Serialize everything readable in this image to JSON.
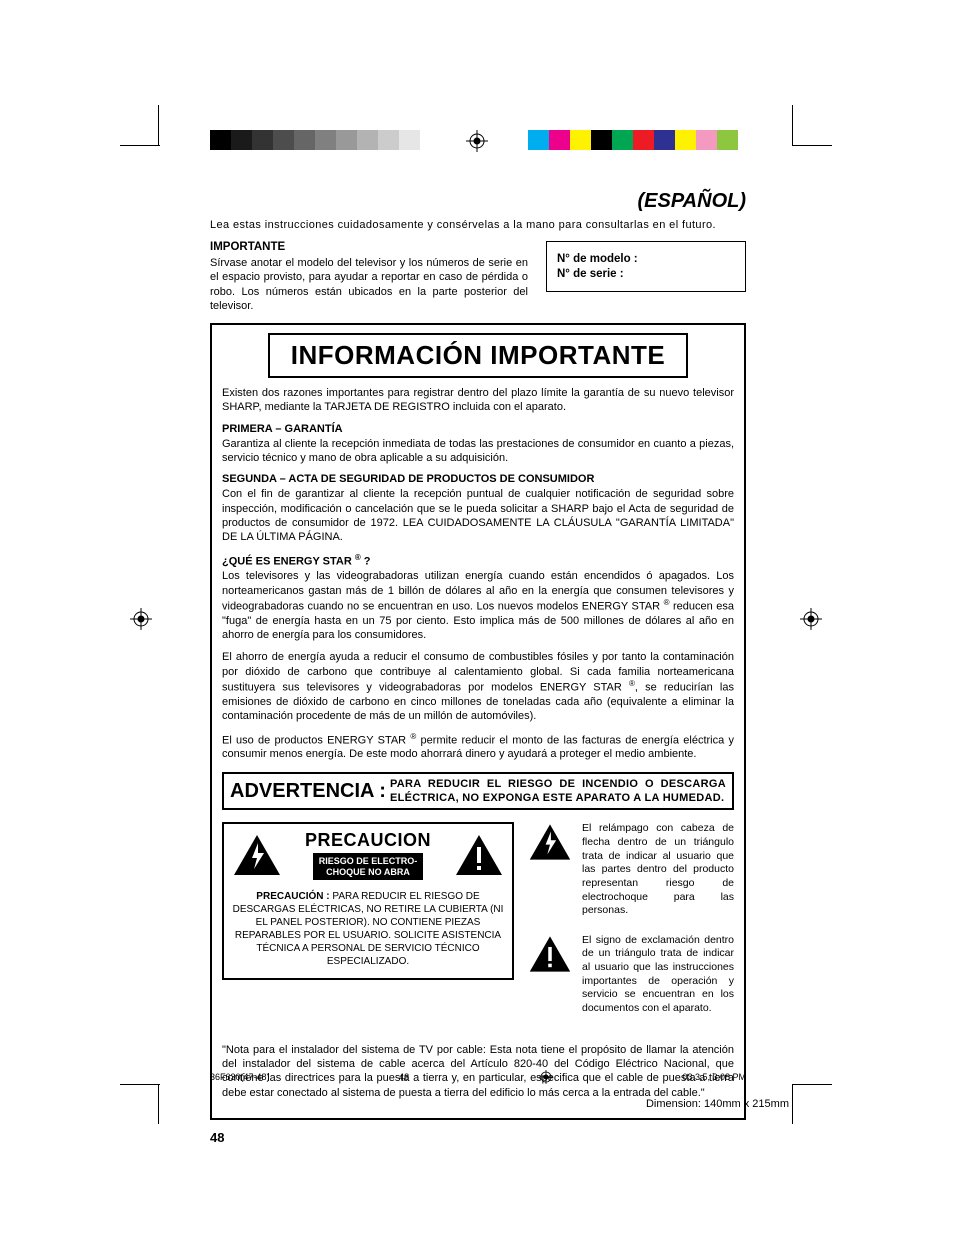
{
  "colors": {
    "text": "#000000",
    "background": "#ffffff",
    "gray_bar": [
      "#000000",
      "#1a1a1a",
      "#333333",
      "#4d4d4d",
      "#666666",
      "#808080",
      "#999999",
      "#b3b3b3",
      "#cccccc",
      "#e6e6e6"
    ],
    "cmyk_bar": [
      "#00aeef",
      "#ec008c",
      "#fff200",
      "#000000",
      "#00a651",
      "#ed1c24",
      "#2e3192",
      "#fff200",
      "#f49ac1",
      "#8dc63f"
    ]
  },
  "lang_title": "(ESPAÑOL)",
  "intro": "Lea estas instrucciones cuidadosamente y consérvelas a la mano para consultarlas en el futuro.",
  "importante": {
    "heading": "IMPORTANTE",
    "body": "Sírvase anotar el modelo del televisor y los números de serie en el espacio provisto, para ayudar a reportar en caso de pérdida o robo. Los números están ubicados en la parte posterior del televisor."
  },
  "model_box": {
    "model_label": "N° de modelo :",
    "serial_label": "N° de serie :"
  },
  "info": {
    "title": "INFORMACIÓN IMPORTANTE",
    "intro": "Existen dos razones importantes para registrar dentro del plazo límite la garantía de su nuevo televisor SHARP, mediante la TARJETA DE REGISTRO incluida con el aparato.",
    "s1_head": "PRIMERA – GARANTÍA",
    "s1_body": "Garantiza al cliente la recepción inmediata de todas las prestaciones de consumidor en cuanto a piezas, servicio técnico y mano de obra aplicable a su adquisición.",
    "s2_head": "SEGUNDA – ACTA DE SEGURIDAD DE PRODUCTOS DE CONSUMIDOR",
    "s2_body": "Con el fin de garantizar al cliente la recepción puntual de cualquier notificación de seguridad sobre inspección, modificación o cancelación que se le pueda solicitar a SHARP bajo el Acta de seguridad de productos de consumidor de 1972. LEA CUIDADOSAMENTE LA CLÁUSULA \"GARANTÍA LIMITADA\" DE LA ÚLTIMA PÁGINA.",
    "s3_head_pre": "¿QUÉ ES ENERGY STAR ",
    "s3_head_post": " ?",
    "s3_p1_a": "Los televisores y las videograbadoras utilizan energía cuando están encendidos ó apagados. Los norteamericanos gastan más de 1 billón de dólares al año en la energía que consumen televisores y videograbadoras cuando no se encuentran en uso. Los nuevos modelos ENERGY STAR ",
    "s3_p1_b": " reducen esa \"fuga\" de energía hasta en un 75 por ciento. Esto implica más de 500 millones de dólares al año en ahorro de energía para los consumidores.",
    "s3_p2_a": "El ahorro de energía ayuda a reducir el consumo de combustibles fósiles y por tanto la contaminación por dióxido de carbono que contribuye al calentamiento global. Si cada familia norteamericana sustituyera sus televisores y videograbadoras por modelos ENERGY STAR ",
    "s3_p2_b": ", se reducirían las emisiones de dióxido de carbono en cinco millones de toneladas cada año (equivalente a eliminar la contaminación procedente de más de un millón de automóviles).",
    "s3_p3_a": "El uso de productos ENERGY STAR ",
    "s3_p3_b": " permite reducir el monto de las facturas de energía eléctrica y consumir menos energía. De este modo ahorrará dinero y ayudará a proteger el medio ambiente."
  },
  "advertencia": {
    "label": "ADVERTENCIA :",
    "text": "PARA REDUCIR EL RIESGO DE INCENDIO O DESCARGA ELÉCTRICA, NO EXPONGA ESTE APARATO A LA HUMEDAD."
  },
  "precaucion": {
    "title": "PRECAUCION",
    "black_line1": "RIESGO DE ELECTRO-",
    "black_line2": "CHOQUE NO ABRA",
    "text_bold": "PRECAUCIÓN :",
    "text": " PARA REDUCIR EL RIESGO DE DESCARGAS ELÉCTRICAS, NO RETIRE LA CUBIERTA (NI EL PANEL POSTERIOR). NO CONTIENE PIEZAS REPARABLES POR EL USUARIO. SOLICITE ASISTENCIA TÉCNICA A PERSONAL DE SERVICIO TÉCNICO ESPECIALIZADO."
  },
  "icon_desc": {
    "bolt": "El relámpago con cabeza de flecha dentro de un triángulo trata de indicar al usuario que las partes dentro del producto representan riesgo de electrochoque para las personas.",
    "excl": "El signo de exclamación dentro de un triángulo trata de indicar al usuario que las instrucciones importantes de operación y servicio se encuentran en los documentos con el aparato."
  },
  "installer_note": "\"Nota para el instalador del sistema de TV por cable: Esta nota tiene el propósito de llamar la atención del instalador del sistema de cable acerca del Artículo 820-40 del Código Eléctrico Nacional, que contiene las directrices para la puesta a tierra y, en particular, especifica que el cable de puesta a tierra debe estar conectado al sistema de puesta a tierra del edificio lo más cerca a la entrada del cable.\"",
  "page_number": "48",
  "footer": {
    "doc_id": "36F630(47-48)",
    "page": "48",
    "timestamp": "03.3.5, 3:08 PM"
  },
  "dimension": "Dimension: 140mm x 215mm",
  "reg_sym": "®"
}
